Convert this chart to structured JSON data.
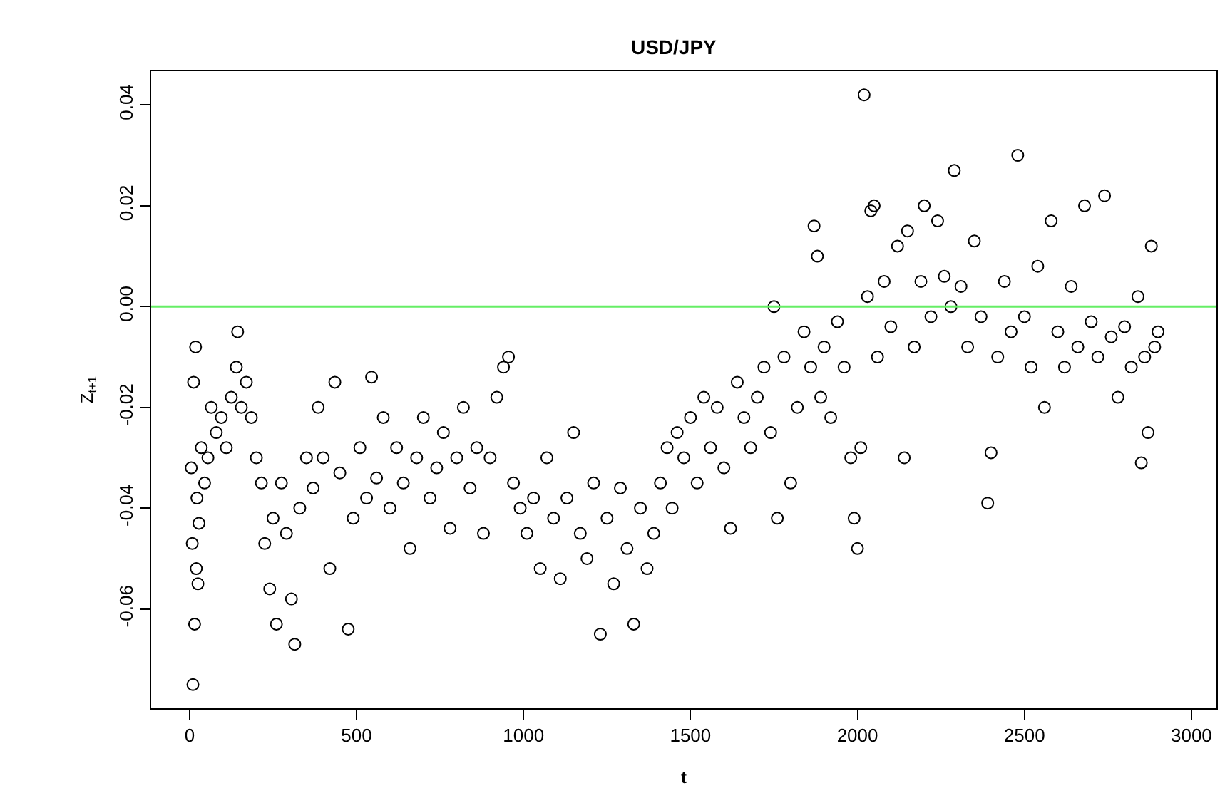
{
  "chart_data": {
    "type": "scatter",
    "title": "USD/JPY",
    "xlabel": "t",
    "ylabel": "Z$_{t+1}$",
    "marker": "circle",
    "grid": false,
    "xlim": [
      -115,
      3075
    ],
    "ylim": [
      -0.0797,
      0.0467
    ],
    "xticks": [
      0,
      500,
      1000,
      1500,
      2000,
      2500,
      3000
    ],
    "yticks": [
      {
        "value": -0.06,
        "label": "-0.06"
      },
      {
        "value": -0.04,
        "label": "-0.04"
      },
      {
        "value": -0.02,
        "label": "-0.02"
      },
      {
        "value": 0,
        "label": "0.00"
      },
      {
        "value": 0.02,
        "label": "0.02"
      },
      {
        "value": 0.04,
        "label": "0.04"
      }
    ],
    "ref_lines": [
      {
        "axis": "y",
        "value": 0,
        "color": "#66ee66"
      }
    ],
    "series": [
      {
        "color": "#000000",
        "x": [
          5,
          8,
          10,
          12,
          15,
          18,
          20,
          22,
          25,
          28,
          35,
          45,
          55,
          65,
          80,
          95,
          110,
          125,
          140,
          144,
          155,
          170,
          185,
          200,
          215,
          225,
          240,
          250,
          260,
          275,
          290,
          305,
          315,
          330,
          350,
          370,
          385,
          400,
          420,
          435,
          450,
          475,
          490,
          510,
          530,
          545,
          560,
          580,
          600,
          620,
          640,
          660,
          680,
          700,
          720,
          740,
          760,
          780,
          800,
          820,
          840,
          860,
          880,
          900,
          920,
          940,
          955,
          970,
          990,
          1010,
          1030,
          1050,
          1070,
          1090,
          1110,
          1130,
          1150,
          1170,
          1190,
          1210,
          1230,
          1250,
          1270,
          1290,
          1310,
          1330,
          1350,
          1370,
          1390,
          1410,
          1430,
          1445,
          1460,
          1480,
          1500,
          1520,
          1540,
          1560,
          1580,
          1600,
          1620,
          1640,
          1660,
          1680,
          1700,
          1720,
          1740,
          1750,
          1760,
          1780,
          1800,
          1820,
          1840,
          1860,
          1870,
          1880,
          1890,
          1900,
          1920,
          1940,
          1960,
          1980,
          1990,
          2000,
          2010,
          2020,
          2030,
          2040,
          2050,
          2060,
          2080,
          2100,
          2120,
          2140,
          2150,
          2170,
          2190,
          2200,
          2220,
          2240,
          2260,
          2280,
          2290,
          2310,
          2330,
          2350,
          2370,
          2390,
          2400,
          2420,
          2440,
          2460,
          2480,
          2500,
          2520,
          2540,
          2560,
          2580,
          2600,
          2620,
          2640,
          2660,
          2680,
          2700,
          2720,
          2740,
          2760,
          2780,
          2800,
          2820,
          2840,
          2850,
          2860,
          2870,
          2880,
          2890,
          2900
        ],
        "values": [
          -0.032,
          -0.047,
          -0.075,
          -0.015,
          -0.063,
          -0.008,
          -0.052,
          -0.038,
          -0.055,
          -0.043,
          -0.028,
          -0.035,
          -0.03,
          -0.02,
          -0.025,
          -0.022,
          -0.028,
          -0.018,
          -0.012,
          -0.005,
          -0.02,
          -0.015,
          -0.022,
          -0.03,
          -0.035,
          -0.047,
          -0.056,
          -0.042,
          -0.063,
          -0.035,
          -0.045,
          -0.058,
          -0.067,
          -0.04,
          -0.03,
          -0.036,
          -0.02,
          -0.03,
          -0.052,
          -0.015,
          -0.033,
          -0.064,
          -0.042,
          -0.028,
          -0.038,
          -0.014,
          -0.034,
          -0.022,
          -0.04,
          -0.028,
          -0.035,
          -0.048,
          -0.03,
          -0.022,
          -0.038,
          -0.032,
          -0.025,
          -0.044,
          -0.03,
          -0.02,
          -0.036,
          -0.028,
          -0.045,
          -0.03,
          -0.018,
          -0.012,
          -0.01,
          -0.035,
          -0.04,
          -0.045,
          -0.038,
          -0.052,
          -0.03,
          -0.042,
          -0.054,
          -0.038,
          -0.025,
          -0.045,
          -0.05,
          -0.035,
          -0.065,
          -0.042,
          -0.055,
          -0.036,
          -0.048,
          -0.063,
          -0.04,
          -0.052,
          -0.045,
          -0.035,
          -0.028,
          -0.04,
          -0.025,
          -0.03,
          -0.022,
          -0.035,
          -0.018,
          -0.028,
          -0.02,
          -0.032,
          -0.044,
          -0.015,
          -0.022,
          -0.028,
          -0.018,
          -0.012,
          -0.025,
          0,
          -0.042,
          -0.01,
          -0.035,
          -0.02,
          -0.005,
          -0.012,
          0.016,
          0.01,
          -0.018,
          -0.008,
          -0.022,
          -0.003,
          -0.012,
          -0.03,
          -0.042,
          -0.048,
          -0.028,
          0.042,
          0.002,
          0.019,
          0.02,
          -0.01,
          0.005,
          -0.004,
          0.012,
          -0.03,
          0.015,
          -0.008,
          0.005,
          0.02,
          -0.002,
          0.017,
          0.006,
          0,
          0.027,
          0.004,
          -0.008,
          0.013,
          -0.002,
          -0.039,
          -0.029,
          -0.01,
          0.005,
          -0.005,
          0.03,
          -0.002,
          -0.012,
          0.008,
          -0.02,
          0.017,
          -0.005,
          -0.012,
          0.004,
          -0.008,
          0.02,
          -0.003,
          -0.01,
          0.022,
          -0.006,
          -0.018,
          -0.004,
          -0.012,
          0.002,
          -0.031,
          -0.01,
          -0.025,
          0.012,
          -0.008,
          -0.005
        ]
      }
    ]
  }
}
